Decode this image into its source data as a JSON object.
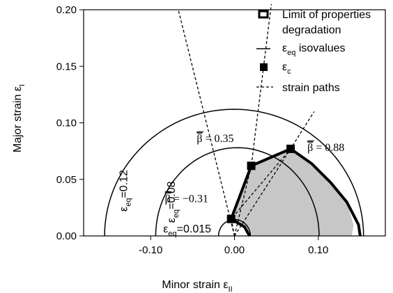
{
  "chart_data": {
    "type": "line",
    "xlabel": {
      "main": "Minor strain ε",
      "sub": "II"
    },
    "ylabel": {
      "main": "Major strain ε",
      "sub": "I"
    },
    "xlim": [
      -0.18,
      0.18
    ],
    "ylim": [
      0.0,
      0.2
    ],
    "xticks": [
      -0.1,
      0.0,
      0.1
    ],
    "xtick_labels": [
      "-0.10",
      "0.00",
      "0.10"
    ],
    "yticks": [
      0.0,
      0.05,
      0.1,
      0.15,
      0.2
    ],
    "ytick_labels": [
      "0.00",
      "0.05",
      "0.10",
      "0.15",
      "0.20"
    ],
    "legend": {
      "position": "top-right",
      "entries": [
        {
          "label": "Limit of properties degradation",
          "lines": [
            "Limit of properties",
            "degradation"
          ],
          "marker": "hollow-square"
        },
        {
          "label": "ε_eq isovalues",
          "main": "ε",
          "sub": "eq",
          "rest": " isovalues",
          "marker": "solid-line"
        },
        {
          "label": "ε_c",
          "main": "ε",
          "sub": "c",
          "rest": "",
          "marker": "filled-square"
        },
        {
          "label": "strain paths",
          "marker": "dashed-line"
        }
      ]
    },
    "isovalue_curves": [
      {
        "label_main": "ε",
        "label_sub": "eq",
        "label_rest": "=0.12",
        "radius": 0.112,
        "y_scale": 1.0,
        "x_start": -0.155,
        "x_end": 0.154
      },
      {
        "label_main": "ε",
        "label_sub": "eq",
        "label_rest": "=0.08",
        "radius": 0.078,
        "y_scale": 1.0,
        "x_start": -0.094,
        "x_end": 0.101
      },
      {
        "label_main": "ε",
        "label_sub": "eq",
        "label_rest": "=0.015",
        "radius": 0.0145,
        "y_scale": 1.0,
        "x_start": -0.019,
        "x_end": 0.019
      }
    ],
    "critical_points": [
      {
        "x": -0.004,
        "y": 0.015
      },
      {
        "x": 0.02,
        "y": 0.062
      },
      {
        "x": 0.067,
        "y": 0.077
      }
    ],
    "degradation_limit": [
      {
        "x": 0.018,
        "y": 0.0
      },
      {
        "x": 0.012,
        "y": 0.008
      },
      {
        "x": -0.004,
        "y": 0.015
      },
      {
        "x": 0.02,
        "y": 0.062
      },
      {
        "x": 0.067,
        "y": 0.077
      },
      {
        "x": 0.092,
        "y": 0.064
      },
      {
        "x": 0.115,
        "y": 0.047
      },
      {
        "x": 0.134,
        "y": 0.03
      },
      {
        "x": 0.148,
        "y": 0.01
      },
      {
        "x": 0.15,
        "y": 0.0
      }
    ],
    "degraded_region": [
      {
        "x": 0.018,
        "y": 0.0
      },
      {
        "x": 0.012,
        "y": 0.008
      },
      {
        "x": -0.004,
        "y": 0.015
      },
      {
        "x": 0.02,
        "y": 0.062
      },
      {
        "x": 0.067,
        "y": 0.077
      },
      {
        "x": 0.092,
        "y": 0.064
      },
      {
        "x": 0.115,
        "y": 0.047
      },
      {
        "x": 0.134,
        "y": 0.03
      },
      {
        "x": 0.142,
        "y": 0.01
      },
      {
        "x": 0.14,
        "y": 0.0
      }
    ],
    "strain_paths": [
      {
        "points": [
          {
            "x": 0.0,
            "y": 0.0
          },
          {
            "x": -0.067,
            "y": 0.2
          }
        ]
      },
      {
        "points": [
          {
            "x": 0.0,
            "y": 0.0
          },
          {
            "x": 0.02,
            "y": 0.062
          },
          {
            "x": 0.044,
            "y": 0.205
          }
        ]
      },
      {
        "points": [
          {
            "x": 0.0,
            "y": 0.0
          },
          {
            "x": 0.067,
            "y": 0.077
          },
          {
            "x": 0.095,
            "y": 0.11
          }
        ]
      },
      {
        "points": [
          {
            "x": 0.0,
            "y": 0.0
          },
          {
            "x": -0.004,
            "y": 0.015
          },
          {
            "x": 0.02,
            "y": 0.062
          }
        ]
      },
      {
        "points": [
          {
            "x": 0.0,
            "y": 0.0
          },
          {
            "x": -0.004,
            "y": 0.015
          },
          {
            "x": 0.067,
            "y": 0.077
          }
        ]
      }
    ],
    "path_annotations": [
      {
        "text": "β = 0.35",
        "symbol": "β",
        "rest": " = 0.35",
        "x": -0.045,
        "y": 0.083
      },
      {
        "text": "β = 0.88",
        "symbol": "β",
        "rest": " = 0.88",
        "x": 0.087,
        "y": 0.075
      },
      {
        "text": "β = −0.31",
        "symbol": "β",
        "rest": " = −0.31",
        "x": -0.083,
        "y": 0.03
      }
    ]
  }
}
